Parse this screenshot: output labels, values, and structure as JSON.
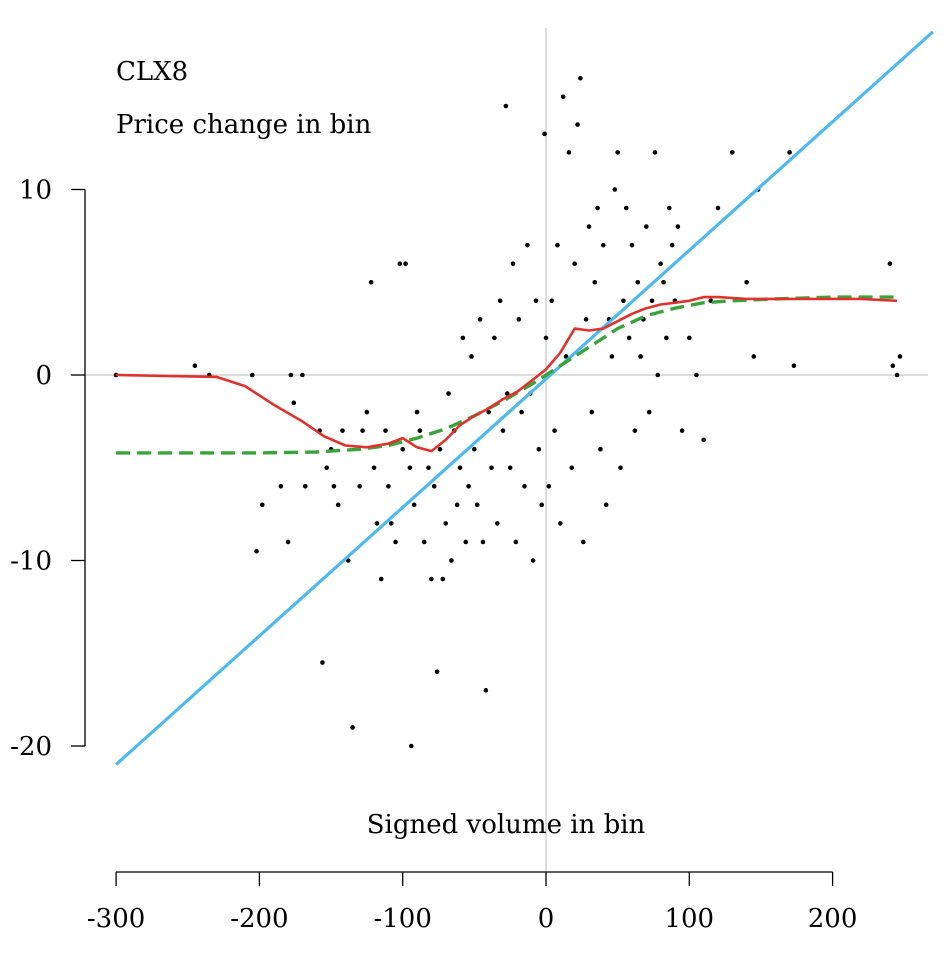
{
  "chart_data": {
    "type": "scatter",
    "title": "CLX8",
    "subtitle": "Price change in bin",
    "xlabel": "Signed volume in bin",
    "ylabel": "",
    "xlim": [
      -300,
      270
    ],
    "ylim": [
      -22,
      19
    ],
    "x_ticks": [
      -300,
      -200,
      -100,
      0,
      100,
      200
    ],
    "x_tick_labels": [
      "-300",
      "-200",
      "-100",
      "0",
      "100",
      "200"
    ],
    "y_ticks": [
      10,
      0,
      -10,
      -20
    ],
    "y_tick_labels": [
      "10",
      "0",
      "-10",
      "-20"
    ],
    "grid": false,
    "reference_lines": {
      "x": 0,
      "y": 0
    },
    "colors": {
      "points": "#000000",
      "linear": "#4fb8ec",
      "red_curve": "#e0322c",
      "green_curve": "#3aa33a",
      "reference": "#bbbbbb"
    },
    "series": [
      {
        "style": "points",
        "points": [
          [
            -300,
            0
          ],
          [
            -245,
            0.5
          ],
          [
            -235,
            0
          ],
          [
            -205,
            0
          ],
          [
            -202,
            -9.5
          ],
          [
            -198,
            -7
          ],
          [
            -185,
            -6
          ],
          [
            -180,
            -9
          ],
          [
            -178,
            0
          ],
          [
            -176,
            -1.5
          ],
          [
            -170,
            0
          ],
          [
            -168,
            -6
          ],
          [
            -158,
            -3
          ],
          [
            -156,
            -15.5
          ],
          [
            -153,
            -5
          ],
          [
            -150,
            -4
          ],
          [
            -148,
            -6
          ],
          [
            -145,
            -7
          ],
          [
            -142,
            -3
          ],
          [
            -138,
            -10
          ],
          [
            -135,
            -19
          ],
          [
            -130,
            -6
          ],
          [
            -128,
            -3
          ],
          [
            -125,
            -2
          ],
          [
            -122,
            5
          ],
          [
            -120,
            -5
          ],
          [
            -118,
            -8
          ],
          [
            -115,
            -11
          ],
          [
            -112,
            -3
          ],
          [
            -110,
            -6
          ],
          [
            -108,
            -8
          ],
          [
            -105,
            -9
          ],
          [
            -102,
            6
          ],
          [
            -100,
            -4
          ],
          [
            -98,
            6
          ],
          [
            -95,
            -5
          ],
          [
            -94,
            -20
          ],
          [
            -92,
            -7
          ],
          [
            -90,
            -2
          ],
          [
            -88,
            -3
          ],
          [
            -85,
            -9
          ],
          [
            -82,
            -5
          ],
          [
            -80,
            -11
          ],
          [
            -78,
            -6
          ],
          [
            -76,
            -16
          ],
          [
            -74,
            -4
          ],
          [
            -72,
            -11
          ],
          [
            -70,
            -8
          ],
          [
            -68,
            -1
          ],
          [
            -66,
            -10
          ],
          [
            -64,
            -3
          ],
          [
            -62,
            -7
          ],
          [
            -60,
            -5
          ],
          [
            -58,
            2
          ],
          [
            -56,
            -9
          ],
          [
            -54,
            -6
          ],
          [
            -52,
            1
          ],
          [
            -50,
            -4
          ],
          [
            -48,
            -7
          ],
          [
            -46,
            3
          ],
          [
            -44,
            -9
          ],
          [
            -42,
            -17
          ],
          [
            -40,
            -2
          ],
          [
            -38,
            -5
          ],
          [
            -36,
            2
          ],
          [
            -34,
            -8
          ],
          [
            -32,
            4
          ],
          [
            -30,
            -3
          ],
          [
            -28,
            14.5
          ],
          [
            -27,
            -1
          ],
          [
            -25,
            -5
          ],
          [
            -23,
            6
          ],
          [
            -21,
            -9
          ],
          [
            -19,
            3
          ],
          [
            -17,
            -2
          ],
          [
            -15,
            -6
          ],
          [
            -13,
            7
          ],
          [
            -11,
            -1
          ],
          [
            -9,
            -10
          ],
          [
            -7,
            4
          ],
          [
            -5,
            -4
          ],
          [
            -3,
            -7
          ],
          [
            -1,
            13
          ],
          [
            0,
            2
          ],
          [
            2,
            -6
          ],
          [
            4,
            4
          ],
          [
            6,
            -3
          ],
          [
            8,
            7
          ],
          [
            10,
            -8
          ],
          [
            12,
            15
          ],
          [
            14,
            1
          ],
          [
            16,
            12
          ],
          [
            18,
            -5
          ],
          [
            20,
            6
          ],
          [
            22,
            13.5
          ],
          [
            24,
            16
          ],
          [
            26,
            -9
          ],
          [
            28,
            3
          ],
          [
            30,
            8
          ],
          [
            32,
            -2
          ],
          [
            34,
            5
          ],
          [
            36,
            9
          ],
          [
            38,
            -4
          ],
          [
            40,
            7
          ],
          [
            42,
            -7
          ],
          [
            44,
            3
          ],
          [
            46,
            1
          ],
          [
            48,
            10
          ],
          [
            50,
            12
          ],
          [
            52,
            -5
          ],
          [
            54,
            4
          ],
          [
            56,
            9
          ],
          [
            58,
            2
          ],
          [
            60,
            7
          ],
          [
            62,
            -3
          ],
          [
            64,
            5
          ],
          [
            66,
            1
          ],
          [
            68,
            3
          ],
          [
            70,
            8
          ],
          [
            72,
            -2
          ],
          [
            74,
            4
          ],
          [
            76,
            12
          ],
          [
            78,
            0
          ],
          [
            80,
            6
          ],
          [
            82,
            5
          ],
          [
            84,
            2
          ],
          [
            86,
            9
          ],
          [
            88,
            7
          ],
          [
            90,
            4
          ],
          [
            92,
            8
          ],
          [
            95,
            -3
          ],
          [
            100,
            2
          ],
          [
            105,
            0
          ],
          [
            110,
            -3.5
          ],
          [
            115,
            4
          ],
          [
            120,
            9
          ],
          [
            130,
            12
          ],
          [
            140,
            5
          ],
          [
            145,
            1
          ],
          [
            148,
            10
          ],
          [
            170,
            12
          ],
          [
            173,
            0.5
          ],
          [
            240,
            6
          ],
          [
            242,
            0.5
          ],
          [
            245,
            0
          ],
          [
            247,
            1
          ]
        ]
      },
      {
        "style": "line",
        "x": [
          -300,
          270
        ],
        "y": [
          -21,
          18.5
        ]
      },
      {
        "style": "line",
        "x": [
          -300,
          -230,
          -210,
          -190,
          -170,
          -155,
          -140,
          -125,
          -110,
          -100,
          -90,
          -80,
          -70,
          -60,
          -50,
          -40,
          -30,
          -20,
          -10,
          0,
          10,
          20,
          30,
          40,
          50,
          60,
          70,
          80,
          90,
          100,
          110,
          120,
          140,
          160,
          180,
          200,
          220,
          245
        ],
        "y": [
          0,
          -0.1,
          -0.6,
          -1.6,
          -2.5,
          -3.3,
          -3.8,
          -3.9,
          -3.7,
          -3.4,
          -3.9,
          -4.1,
          -3.5,
          -2.7,
          -2.2,
          -1.8,
          -1.3,
          -0.9,
          -0.3,
          0.3,
          1.2,
          2.5,
          2.4,
          2.5,
          2.9,
          3.3,
          3.6,
          3.8,
          3.9,
          4.0,
          4.2,
          4.2,
          4.1,
          4.1,
          4.1,
          4.1,
          4.1,
          4.0
        ]
      },
      {
        "style": "dashed",
        "x": [
          -300,
          -250,
          -200,
          -160,
          -130,
          -110,
          -90,
          -70,
          -50,
          -30,
          -10,
          0,
          10,
          30,
          50,
          70,
          90,
          110,
          130,
          160,
          200,
          245
        ],
        "y": [
          -4.2,
          -4.2,
          -4.2,
          -4.15,
          -4.0,
          -3.8,
          -3.4,
          -2.9,
          -2.2,
          -1.4,
          -0.5,
          0,
          0.5,
          1.5,
          2.5,
          3.2,
          3.6,
          3.9,
          4.0,
          4.1,
          4.2,
          4.2
        ]
      }
    ]
  }
}
